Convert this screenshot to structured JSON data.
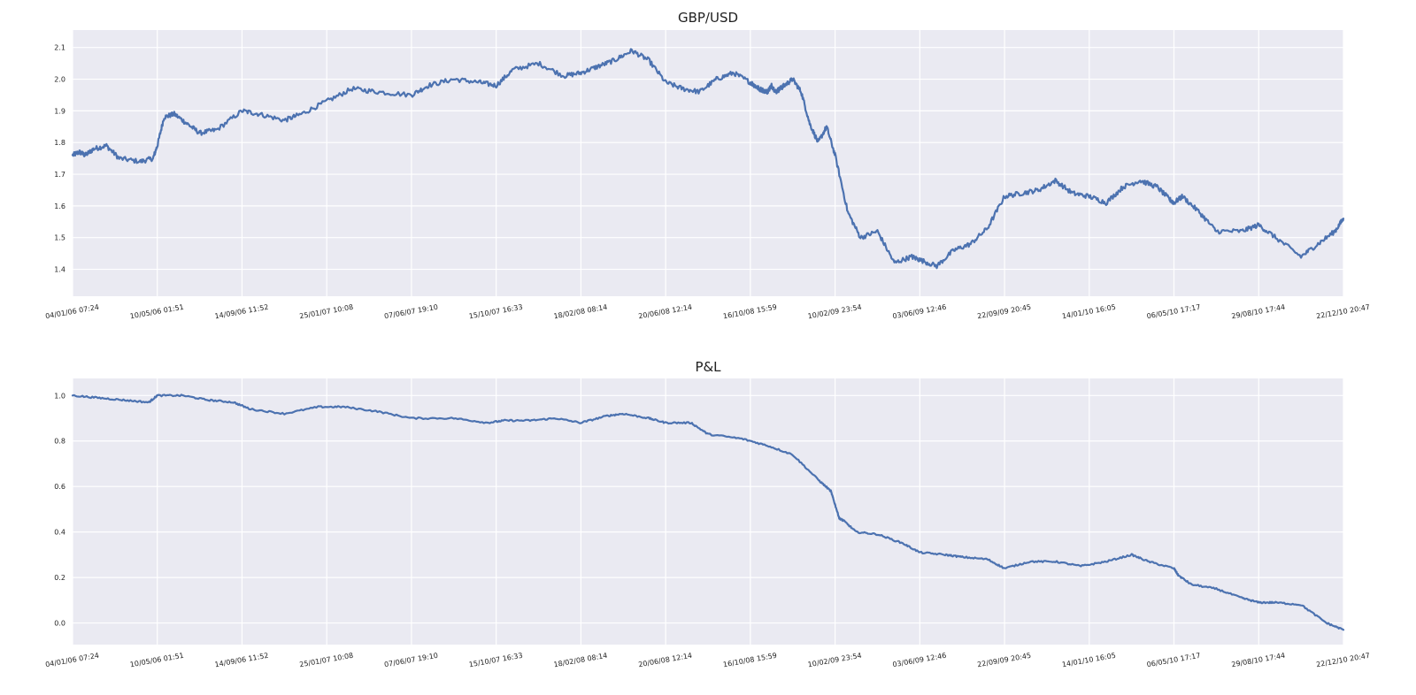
{
  "chart_data": [
    {
      "type": "line",
      "title": "GBP/USD",
      "xlabel": "",
      "ylabel": "",
      "ylim": [
        1.315,
        2.155
      ],
      "yticks": [
        "1.4",
        "1.5",
        "1.6",
        "1.7",
        "1.8",
        "1.9",
        "2.0",
        "2.1"
      ],
      "ytick_values": [
        1.4,
        1.5,
        1.6,
        1.7,
        1.8,
        1.9,
        2.0,
        2.1
      ],
      "xticks": [
        "04/01/06 07:24",
        "10/05/06 01:51",
        "14/09/06 11:52",
        "25/01/07 10:08",
        "07/06/07 19:10",
        "15/10/07 16:33",
        "18/02/08 08:14",
        "20/06/08 12:14",
        "16/10/08 15:59",
        "10/02/09 23:54",
        "03/06/09 12:46",
        "22/09/09 20:45",
        "14/01/10 16:05",
        "06/05/10 17:17",
        "29/08/10 17:44",
        "22/12/10 20:47"
      ],
      "grid": true,
      "color": "#4C72B0",
      "series": [
        {
          "x": [
            0,
            0.08,
            0.15,
            0.25,
            0.4,
            0.55,
            0.8,
            0.95,
            1.0,
            1.08,
            1.2,
            1.35,
            1.5,
            1.7,
            2.0,
            2.2,
            2.5,
            2.7,
            3.0,
            3.3,
            3.6,
            4.0,
            4.2,
            4.5,
            4.8,
            5.0,
            5.2,
            5.5,
            5.8,
            6.0,
            6.2,
            6.4,
            6.6,
            6.8,
            7.0,
            7.2,
            7.4,
            7.6,
            7.8,
            8.0,
            8.05,
            8.1,
            8.2,
            8.25,
            8.3,
            8.35,
            8.4,
            8.5,
            8.6,
            8.7,
            8.8,
            8.9,
            9.0,
            9.15,
            9.3,
            9.5,
            9.7,
            9.9,
            10.0,
            10.2,
            10.4,
            10.6,
            10.8,
            11.0,
            11.2,
            11.4,
            11.6,
            11.8,
            12.0,
            12.2,
            12.4,
            12.6,
            12.8,
            12.95,
            13.0,
            13.1,
            13.3,
            13.5,
            13.8,
            14.0,
            14.2,
            14.5,
            14.7,
            14.9,
            15.0
          ],
          "values": [
            1.76,
            1.77,
            1.76,
            1.78,
            1.79,
            1.75,
            1.74,
            1.75,
            1.79,
            1.88,
            1.89,
            1.86,
            1.83,
            1.84,
            1.9,
            1.89,
            1.87,
            1.89,
            1.93,
            1.97,
            1.96,
            1.95,
            1.98,
            2.0,
            1.99,
            1.98,
            2.03,
            2.05,
            2.01,
            2.02,
            2.04,
            2.06,
            2.09,
            2.06,
            1.99,
            1.97,
            1.96,
            2.0,
            2.02,
            1.99,
            1.98,
            1.97,
            1.96,
            1.98,
            1.96,
            1.97,
            1.98,
            2.0,
            1.96,
            1.86,
            1.8,
            1.85,
            1.76,
            1.58,
            1.5,
            1.52,
            1.42,
            1.44,
            1.43,
            1.41,
            1.46,
            1.48,
            1.53,
            1.63,
            1.64,
            1.65,
            1.68,
            1.64,
            1.63,
            1.61,
            1.66,
            1.68,
            1.66,
            1.62,
            1.61,
            1.63,
            1.58,
            1.52,
            1.52,
            1.54,
            1.5,
            1.44,
            1.48,
            1.52,
            1.56
          ]
        }
      ]
    },
    {
      "type": "line",
      "title": "P&L",
      "xlabel": "",
      "ylabel": "",
      "ylim": [
        -0.095,
        1.075
      ],
      "yticks": [
        "0.0",
        "0.2",
        "0.4",
        "0.6",
        "0.8",
        "1.0"
      ],
      "ytick_values": [
        0.0,
        0.2,
        0.4,
        0.6,
        0.8,
        1.0
      ],
      "xticks": [
        "04/01/06 07:24",
        "10/05/06 01:51",
        "14/09/06 11:52",
        "25/01/07 10:08",
        "07/06/07 19:10",
        "15/10/07 16:33",
        "18/02/08 08:14",
        "20/06/08 12:14",
        "16/10/08 15:59",
        "10/02/09 23:54",
        "03/06/09 12:46",
        "22/09/09 20:45",
        "14/01/10 16:05",
        "06/05/10 17:17",
        "29/08/10 17:44",
        "22/12/10 20:47"
      ],
      "grid": true,
      "color": "#4C72B0",
      "series": [
        {
          "x": [
            0,
            0.3,
            0.6,
            0.9,
            1.0,
            1.3,
            1.6,
            1.9,
            2.1,
            2.5,
            2.9,
            3.2,
            3.6,
            4.0,
            4.5,
            4.9,
            5.1,
            5.4,
            5.7,
            6.0,
            6.3,
            6.5,
            6.8,
            7.0,
            7.3,
            7.5,
            7.9,
            8.2,
            8.5,
            8.8,
            8.95,
            9.0,
            9.05,
            9.1,
            9.25,
            9.5,
            9.8,
            10.0,
            10.3,
            10.5,
            10.8,
            11.0,
            11.3,
            11.6,
            11.9,
            12.2,
            12.5,
            12.7,
            13.0,
            13.05,
            13.2,
            13.5,
            13.8,
            14.0,
            14.2,
            14.5,
            14.8,
            15.0
          ],
          "values": [
            1.0,
            0.99,
            0.98,
            0.97,
            1.0,
            1.0,
            0.98,
            0.97,
            0.94,
            0.92,
            0.95,
            0.95,
            0.93,
            0.9,
            0.9,
            0.88,
            0.89,
            0.89,
            0.9,
            0.88,
            0.91,
            0.92,
            0.9,
            0.88,
            0.88,
            0.83,
            0.81,
            0.78,
            0.74,
            0.63,
            0.58,
            0.52,
            0.46,
            0.45,
            0.4,
            0.39,
            0.35,
            0.31,
            0.3,
            0.29,
            0.28,
            0.24,
            0.27,
            0.27,
            0.25,
            0.27,
            0.3,
            0.27,
            0.24,
            0.21,
            0.17,
            0.15,
            0.11,
            0.09,
            0.09,
            0.08,
            0.0,
            -0.03
          ]
        }
      ]
    }
  ]
}
